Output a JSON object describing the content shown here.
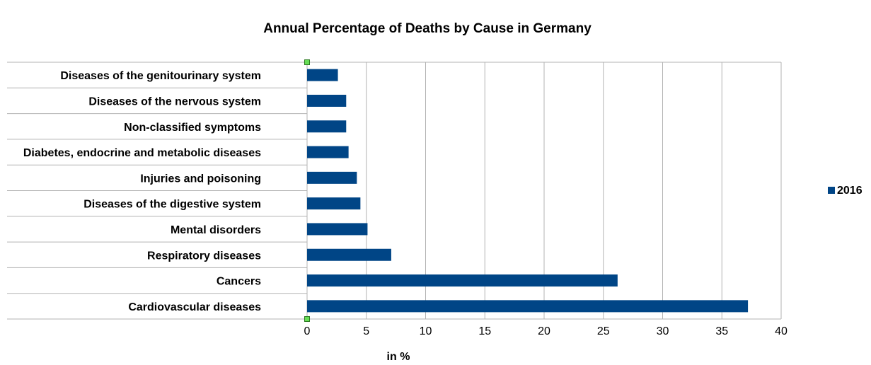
{
  "chart_data": {
    "type": "bar",
    "orientation": "horizontal",
    "title": "Annual Percentage of Deaths by Cause in Germany",
    "xlabel": "in %",
    "ylabel": "",
    "xlim": [
      0,
      40
    ],
    "x_ticks": [
      0,
      5,
      10,
      15,
      20,
      25,
      30,
      35,
      40
    ],
    "grid": "vertical",
    "legend": {
      "position": "right",
      "entries": [
        "2016"
      ]
    },
    "categories": [
      "Diseases of the genitourinary system",
      "Diseases of the nervous system",
      "Non-classified symptoms",
      "Diabetes, endocrine and metabolic diseases",
      "Injuries and poisoning",
      "Diseases of the digestive system",
      "Mental disorders",
      "Respiratory diseases",
      "Cancers",
      "Cardiovascular diseases"
    ],
    "series": [
      {
        "name": "2016",
        "color": "#004586",
        "values": [
          2.6,
          3.3,
          3.3,
          3.5,
          4.2,
          4.5,
          5.1,
          7.1,
          26.2,
          37.2
        ]
      }
    ]
  }
}
